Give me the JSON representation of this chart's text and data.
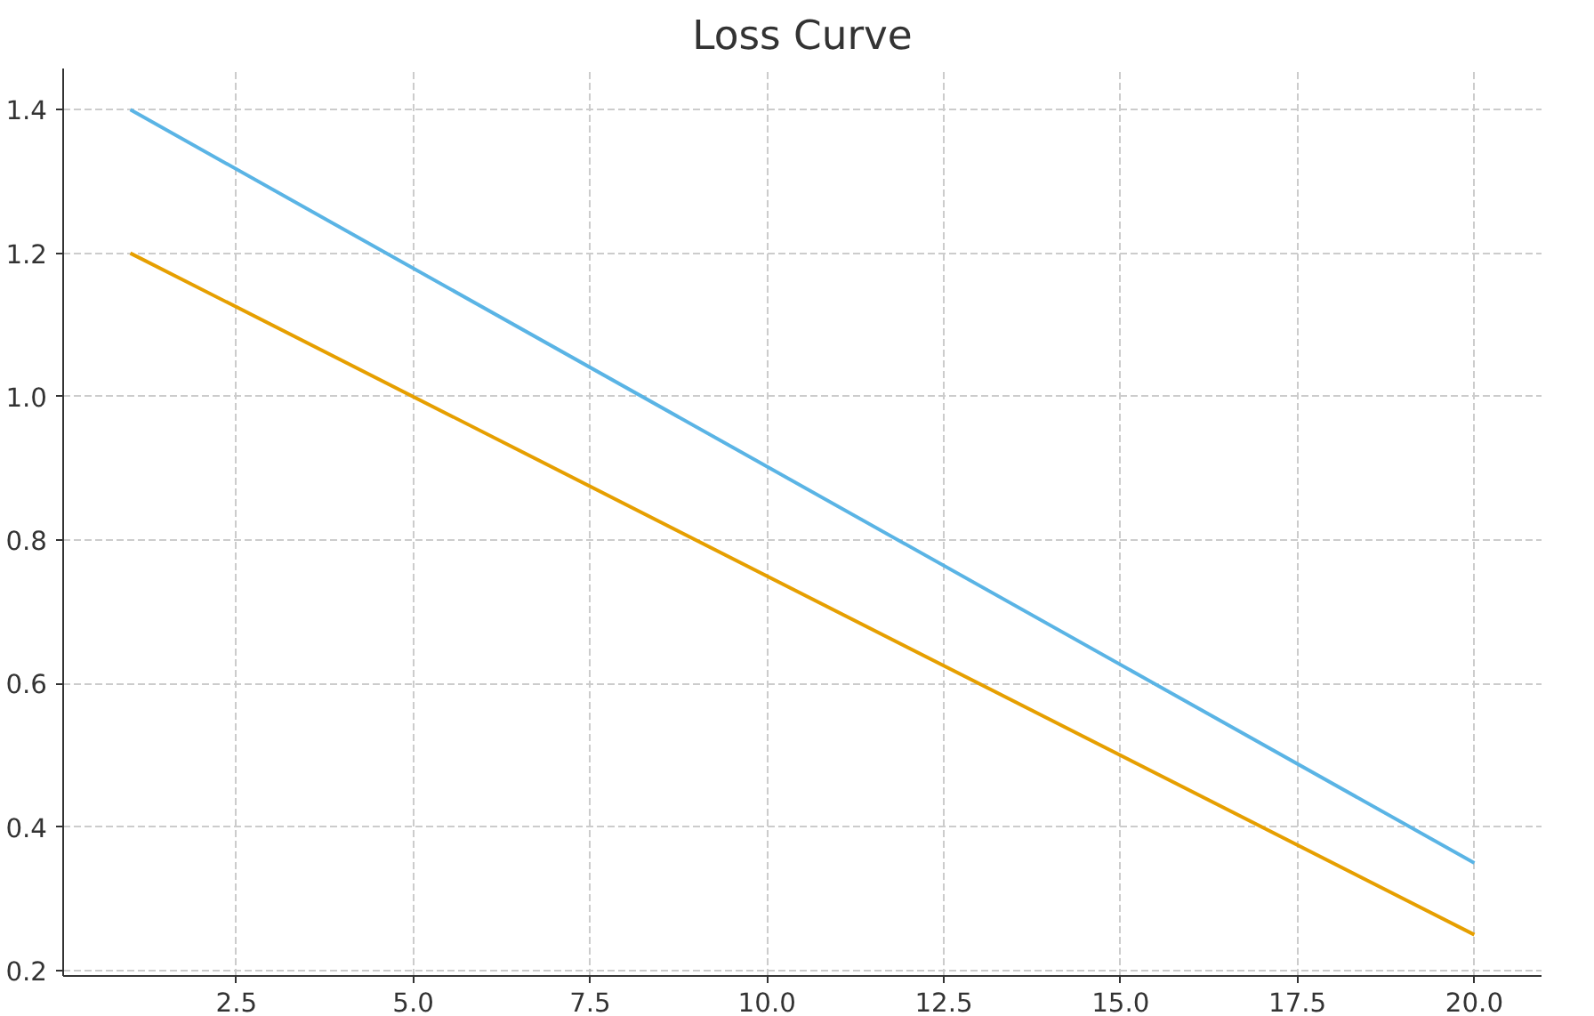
{
  "chart_data": {
    "type": "line",
    "title": "Loss Curve",
    "x": [
      1,
      20
    ],
    "series": [
      {
        "color": "#5ab4e5",
        "values": [
          1.4,
          0.35
        ]
      },
      {
        "color": "#e69f00",
        "values": [
          1.2,
          0.25
        ]
      }
    ],
    "xlim": [
      0.05,
      20.95
    ],
    "ylim": [
      0.1925,
      1.4575
    ],
    "xticks": [
      {
        "value": 2.5,
        "label": "2.5"
      },
      {
        "value": 5,
        "label": "5.0"
      },
      {
        "value": 7.5,
        "label": "7.5"
      },
      {
        "value": 10,
        "label": "10.0"
      },
      {
        "value": 12.5,
        "label": "12.5"
      },
      {
        "value": 15,
        "label": "15.0"
      },
      {
        "value": 17.5,
        "label": "17.5"
      },
      {
        "value": 20,
        "label": "20.0"
      }
    ],
    "yticks": [
      0.2,
      0.4,
      0.6,
      0.8,
      {
        "value": 1,
        "label": "1.0"
      },
      1.2,
      1.4
    ],
    "grid": true,
    "line_style": "solid"
  }
}
